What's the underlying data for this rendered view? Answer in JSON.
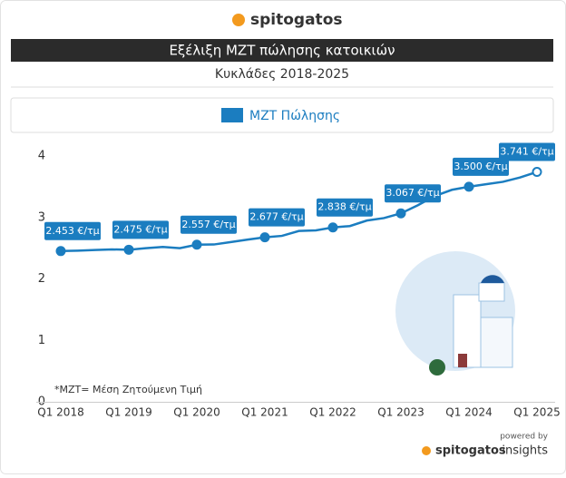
{
  "chart_data": {
    "type": "line",
    "brand": "spitogatos",
    "title": "Εξέλιξη ΜΖΤ πώλησης κατοικιών",
    "subtitle": "Κυκλάδες 2018-2025",
    "note": "*ΜΖΤ= Μέση Ζητούμενη Τιμή",
    "powered_by": "powered by",
    "footer_brand": "spitogatos",
    "footer_brand_suffix": "insights",
    "categories": [
      "Q1 2018",
      null,
      null,
      null,
      "Q1 2019",
      null,
      null,
      null,
      "Q1 2020",
      null,
      null,
      null,
      "Q1 2021",
      null,
      null,
      null,
      "Q1 2022",
      null,
      null,
      null,
      "Q1 2023",
      null,
      null,
      null,
      "Q1 2024",
      null,
      null,
      null,
      "Q1 2025"
    ],
    "series": [
      {
        "name": "ΜΖΤ Πώλησης",
        "color": "#1b7dc0",
        "values": [
          2.453,
          2.46,
          2.47,
          2.48,
          2.475,
          2.5,
          2.52,
          2.5,
          2.557,
          2.56,
          2.6,
          2.64,
          2.677,
          2.7,
          2.78,
          2.79,
          2.838,
          2.86,
          2.95,
          2.99,
          3.067,
          3.2,
          3.35,
          3.45,
          3.5,
          3.54,
          3.58,
          3.65,
          3.741
        ],
        "value_labels": [
          "2.453 €/τμ",
          null,
          null,
          null,
          "2.475 €/τμ",
          null,
          null,
          null,
          "2.557 €/τμ",
          null,
          null,
          null,
          "2.677 €/τμ",
          null,
          null,
          null,
          "2.838 €/τμ",
          null,
          null,
          null,
          "3.067 €/τμ",
          null,
          null,
          null,
          "3.500 €/τμ",
          null,
          null,
          null,
          "3.741 €/τμ"
        ]
      }
    ],
    "ylim": [
      0,
      4
    ],
    "yticks": [
      0,
      1,
      2,
      3,
      4
    ],
    "grid": false,
    "legend": "top"
  }
}
